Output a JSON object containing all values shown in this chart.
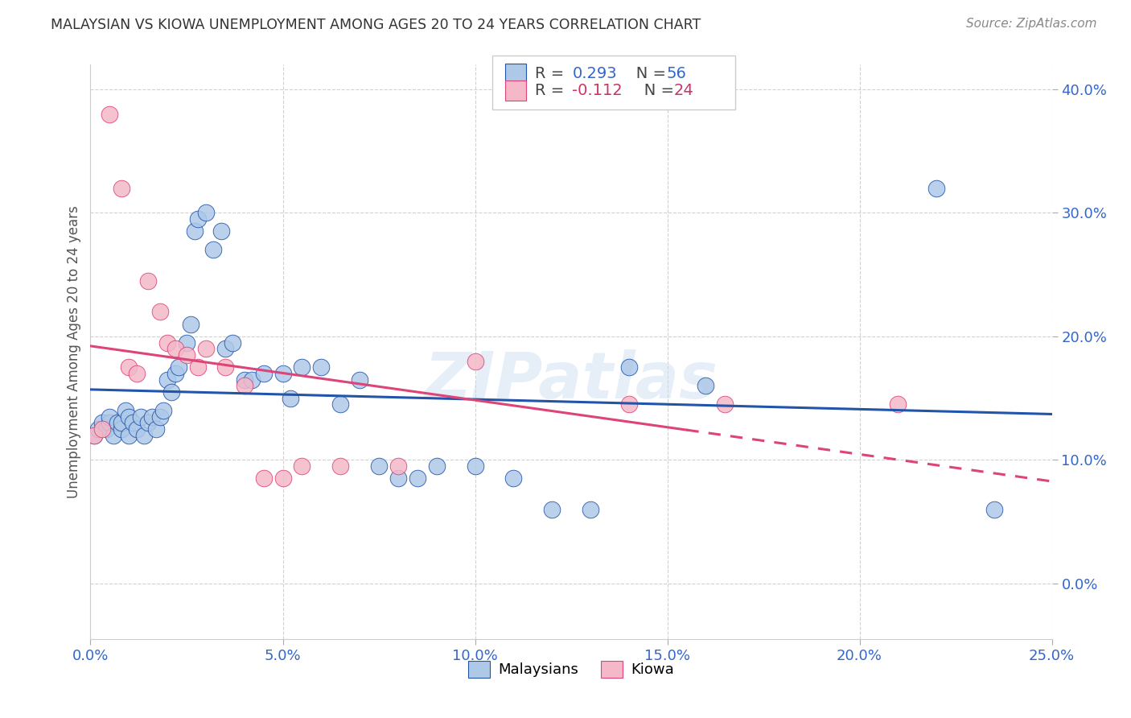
{
  "title": "MALAYSIAN VS KIOWA UNEMPLOYMENT AMONG AGES 20 TO 24 YEARS CORRELATION CHART",
  "source": "Source: ZipAtlas.com",
  "ylabel": "Unemployment Among Ages 20 to 24 years",
  "xlabel_ticks": [
    "0.0%",
    "5.0%",
    "10.0%",
    "15.0%",
    "20.0%",
    "25.0%"
  ],
  "ylabel_ticks": [
    "0.0%",
    "10.0%",
    "20.0%",
    "30.0%",
    "40.0%"
  ],
  "xlim": [
    0.0,
    0.25
  ],
  "ylim": [
    -0.045,
    0.42
  ],
  "r_malaysian": 0.293,
  "n_malaysian": 56,
  "r_kiowa": -0.112,
  "n_kiowa": 24,
  "color_malaysian": "#aec8e8",
  "color_kiowa": "#f4b8c8",
  "line_color_malaysian": "#2255aa",
  "line_color_kiowa": "#dd4477",
  "malaysian_x": [
    0.001,
    0.002,
    0.003,
    0.004,
    0.005,
    0.005,
    0.006,
    0.007,
    0.008,
    0.008,
    0.009,
    0.01,
    0.01,
    0.011,
    0.012,
    0.013,
    0.014,
    0.015,
    0.016,
    0.017,
    0.018,
    0.019,
    0.02,
    0.021,
    0.022,
    0.023,
    0.025,
    0.026,
    0.027,
    0.028,
    0.03,
    0.032,
    0.034,
    0.035,
    0.037,
    0.04,
    0.042,
    0.045,
    0.05,
    0.052,
    0.055,
    0.06,
    0.065,
    0.07,
    0.075,
    0.08,
    0.085,
    0.09,
    0.1,
    0.11,
    0.12,
    0.13,
    0.14,
    0.16,
    0.22,
    0.235
  ],
  "malaysian_y": [
    0.12,
    0.125,
    0.13,
    0.125,
    0.13,
    0.135,
    0.12,
    0.13,
    0.125,
    0.13,
    0.14,
    0.12,
    0.135,
    0.13,
    0.125,
    0.135,
    0.12,
    0.13,
    0.135,
    0.125,
    0.135,
    0.14,
    0.165,
    0.155,
    0.17,
    0.175,
    0.195,
    0.21,
    0.285,
    0.295,
    0.3,
    0.27,
    0.285,
    0.19,
    0.195,
    0.165,
    0.165,
    0.17,
    0.17,
    0.15,
    0.175,
    0.175,
    0.145,
    0.165,
    0.095,
    0.085,
    0.085,
    0.095,
    0.095,
    0.085,
    0.06,
    0.06,
    0.175,
    0.16,
    0.32,
    0.06
  ],
  "kiowa_x": [
    0.001,
    0.003,
    0.005,
    0.008,
    0.01,
    0.012,
    0.015,
    0.018,
    0.02,
    0.022,
    0.025,
    0.028,
    0.03,
    0.035,
    0.04,
    0.045,
    0.05,
    0.055,
    0.065,
    0.08,
    0.1,
    0.14,
    0.165,
    0.21
  ],
  "kiowa_y": [
    0.12,
    0.125,
    0.38,
    0.32,
    0.175,
    0.17,
    0.245,
    0.22,
    0.195,
    0.19,
    0.185,
    0.175,
    0.19,
    0.175,
    0.16,
    0.085,
    0.085,
    0.095,
    0.095,
    0.095,
    0.18,
    0.145,
    0.145,
    0.145
  ]
}
